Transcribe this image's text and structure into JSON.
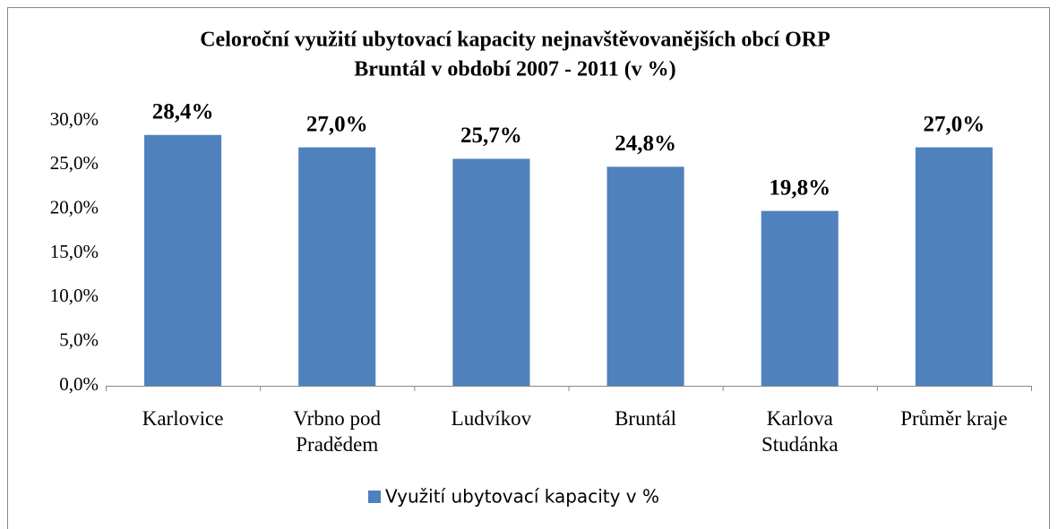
{
  "chart_data": {
    "type": "bar",
    "title": [
      "Celoroční využití ubytovací kapacity nejnavštěvovanějších obcí ORP",
      "Bruntál v období 2007 - 2011 (v %)"
    ],
    "categories": [
      "Karlovice",
      "Vrbno pod Pradědem",
      "Ludvíkov",
      "Bruntál",
      "Karlova Studánka",
      "Průměr kraje"
    ],
    "series": [
      {
        "name": "Využití ubytovací kapacity v %",
        "color": "#4f81bd",
        "values": [
          28.4,
          27.0,
          25.7,
          24.8,
          19.8,
          27.0
        ],
        "value_labels": [
          "28,4%",
          "27,0%",
          "25,7%",
          "24,8%",
          "19,8%",
          "27,0%"
        ]
      }
    ],
    "ylim": [
      0,
      30
    ],
    "yticks": [
      {
        "value": 0,
        "label": "0,0%"
      },
      {
        "value": 5,
        "label": "5,0%"
      },
      {
        "value": 10,
        "label": "10,0%"
      },
      {
        "value": 15,
        "label": "15,0%"
      },
      {
        "value": 20,
        "label": "20,0%"
      },
      {
        "value": 25,
        "label": "25,0%"
      },
      {
        "value": 30,
        "label": "30,0%"
      }
    ],
    "grid": false,
    "legend": "bottom"
  }
}
